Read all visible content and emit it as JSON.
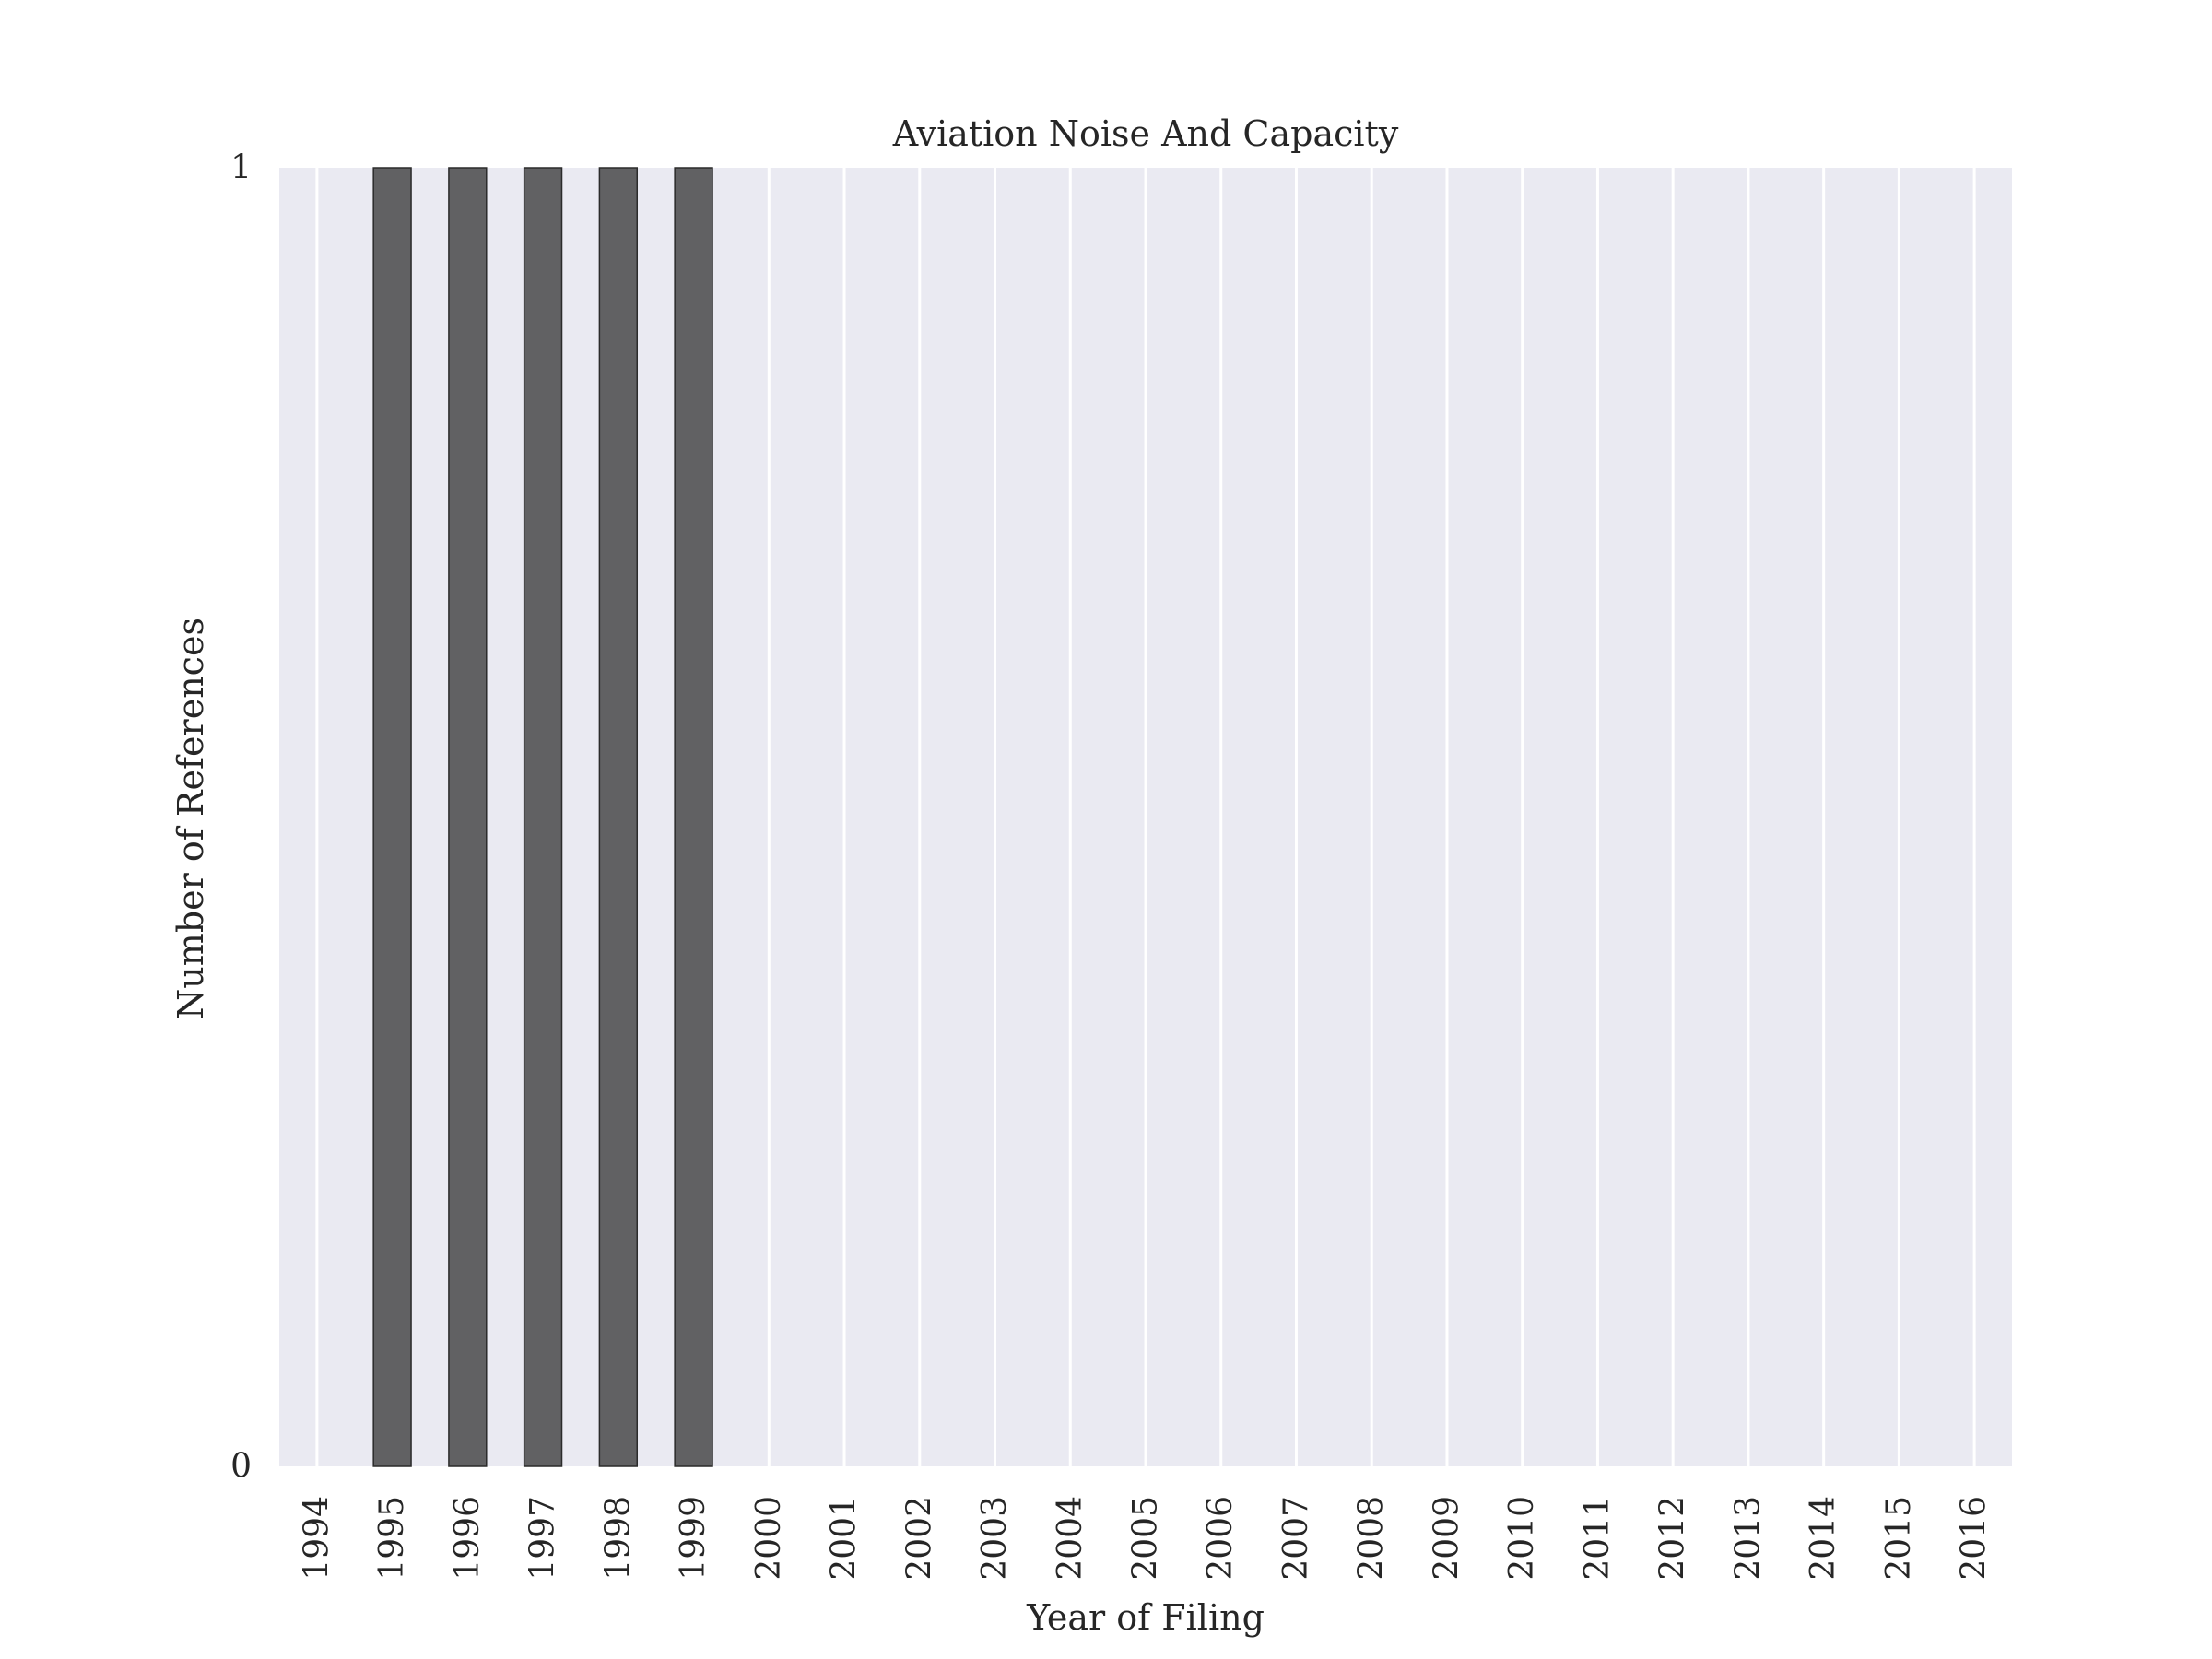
{
  "chart_data": {
    "type": "bar",
    "title": "Aviation Noise And Capacity",
    "xlabel": "Year of Filing",
    "ylabel": "Number of References",
    "categories": [
      "1994",
      "1995",
      "1996",
      "1997",
      "1998",
      "1999",
      "2000",
      "2001",
      "2002",
      "2003",
      "2004",
      "2005",
      "2006",
      "2007",
      "2008",
      "2009",
      "2010",
      "2011",
      "2012",
      "2013",
      "2014",
      "2015",
      "2016"
    ],
    "values": [
      0,
      1,
      1,
      1,
      1,
      1,
      0,
      0,
      0,
      0,
      0,
      0,
      0,
      0,
      0,
      0,
      0,
      0,
      0,
      0,
      0,
      0,
      0
    ],
    "ylim": [
      0,
      1
    ],
    "yticks": [
      "0",
      "1"
    ],
    "grid": true,
    "legend": "none",
    "colors": {
      "bar": "#616163",
      "bar_edge": "#2b2b2b",
      "plot_background": "#eaeaf2",
      "grid": "#ffffff",
      "text": "#262626"
    }
  }
}
